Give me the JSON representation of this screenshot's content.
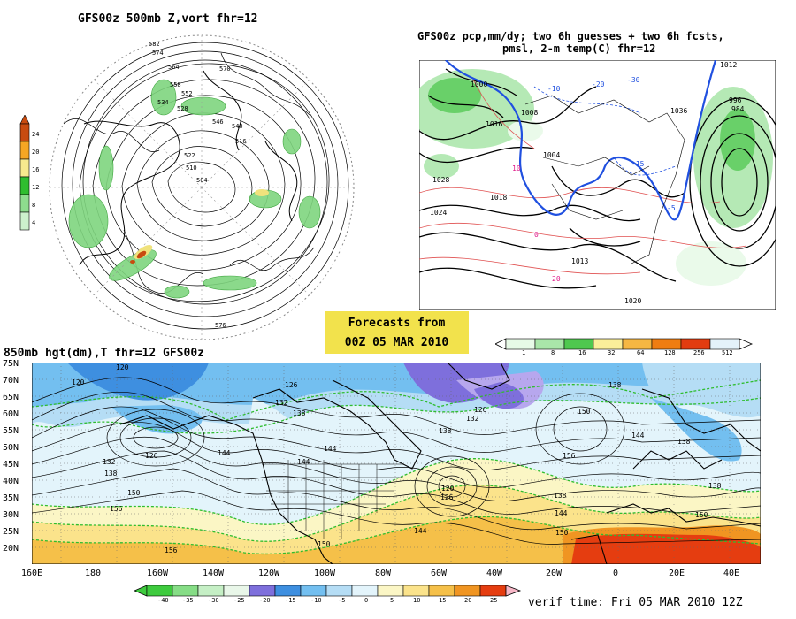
{
  "panel_polar": {
    "title": "GFS00z   500mb Z,vort    fhr=12",
    "colorbar": {
      "values": [
        "24",
        "20",
        "16",
        "12",
        "8",
        "4"
      ],
      "colors": [
        "#c84b10",
        "#f5a623",
        "#f7e98e",
        "#2fbd2f",
        "#8edc8e",
        "#ccf0cc"
      ]
    },
    "contour_labels": [
      "582",
      "574",
      "570",
      "564",
      "558",
      "552",
      "546",
      "540",
      "534",
      "528",
      "522",
      "516",
      "510",
      "504",
      "576"
    ]
  },
  "panel_precip": {
    "title_line1": "GFS00z pcp,mm/dy; two 6h guesses + two 6h fcsts,",
    "title_line2": "pmsl, 2-m temp(C)  fhr=12",
    "pressure_labels": [
      "1012",
      "1000",
      "1008",
      "1016",
      "1024",
      "1020",
      "1028",
      "1036",
      "1004",
      "996",
      "984",
      "1018",
      "1013"
    ],
    "temp_labels": [
      "-10",
      "-20",
      "-30",
      "-15",
      "-5",
      "10",
      "0",
      "20"
    ],
    "colorbar": {
      "values": [
        "1",
        "8",
        "16",
        "32",
        "64",
        "128",
        "256",
        "512"
      ],
      "colors": [
        "#e7fae7",
        "#a9e6a9",
        "#4fc84f",
        "#fbef9a",
        "#f5b743",
        "#f07d12",
        "#e23c10",
        "#f8d8e0"
      ]
    }
  },
  "forecast_box": {
    "line1": "Forecasts from",
    "line2": "00Z 05 MAR 2010"
  },
  "panel_850": {
    "title": "850mb hgt(dm),T   fhr=12 GFS00z",
    "lat_labels": [
      "75N",
      "70N",
      "65N",
      "60N",
      "55N",
      "50N",
      "45N",
      "40N",
      "35N",
      "30N",
      "25N",
      "20N"
    ],
    "lon_labels": [
      "160E",
      "180",
      "160W",
      "140W",
      "120W",
      "100W",
      "80W",
      "60W",
      "40W",
      "20W",
      "0",
      "20E",
      "40E"
    ],
    "height_labels": [
      "120",
      "126",
      "132",
      "138",
      "144",
      "150",
      "156"
    ],
    "colorbar": {
      "values": [
        "-40",
        "-35",
        "-30",
        "-25",
        "-20",
        "-15",
        "-10",
        "-5",
        "0",
        "5",
        "10",
        "15",
        "20",
        "25"
      ],
      "colors": [
        "#3ecb3e",
        "#86dd86",
        "#c5efc5",
        "#b7a7ee",
        "#7e6fdc",
        "#3e8fe0",
        "#73bff0",
        "#b5ddf5",
        "#e3f4fb",
        "#fbf6c5",
        "#fbe38b",
        "#f5c049",
        "#f09522",
        "#e53d10",
        "#f7b7c7"
      ]
    }
  },
  "verif_time": "verif time: Fri 05 MAR 2010 12Z"
}
